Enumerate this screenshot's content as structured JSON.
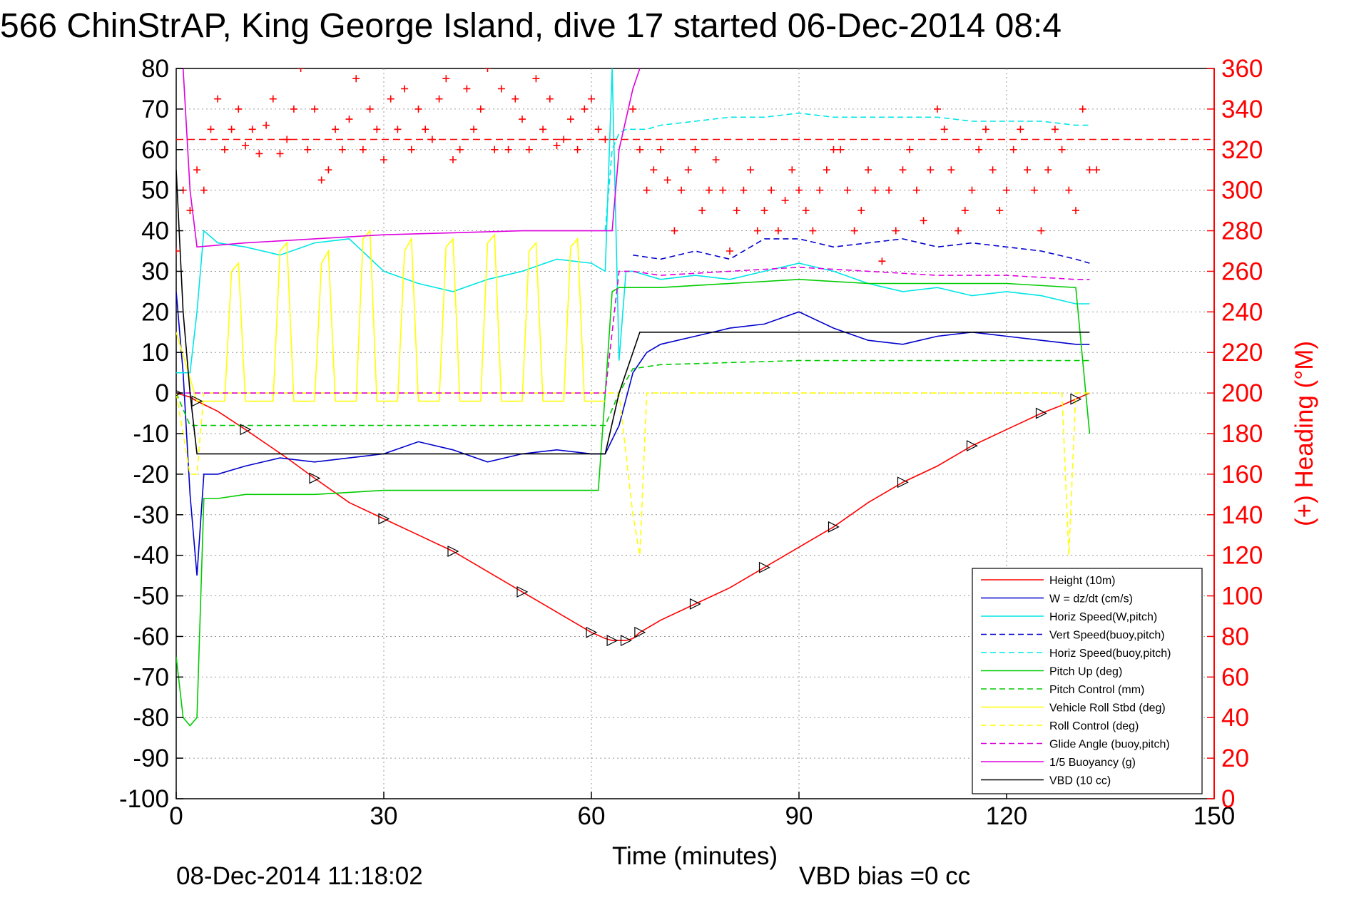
{
  "chart_data": {
    "type": "line",
    "title": "566 ChinStrAP, King George Island, dive 17 started 06-Dec-2014 08:4",
    "xlabel": "Time (minutes)",
    "ylabel_right": "(+) Heading (°M)",
    "footer_left": "08-Dec-2014 11:18:02",
    "footer_right": "VBD bias =0 cc",
    "xlim": [
      0,
      150
    ],
    "ylim_left": [
      -100,
      80
    ],
    "ylim_right": [
      0,
      360
    ],
    "x_ticks": [
      "0",
      "30",
      "60",
      "90",
      "120",
      "150"
    ],
    "y_ticks_left": [
      "80",
      "70",
      "60",
      "50",
      "40",
      "30",
      "20",
      "10",
      "0",
      "-10",
      "-20",
      "-30",
      "-40",
      "-50",
      "-60",
      "-70",
      "-80",
      "-90",
      "-100"
    ],
    "y_ticks_right": [
      "360",
      "340",
      "320",
      "300",
      "280",
      "260",
      "240",
      "220",
      "200",
      "180",
      "160",
      "140",
      "120",
      "100",
      "80",
      "60",
      "40",
      "20",
      "0"
    ],
    "grid": true,
    "legend_position": "bottom-right",
    "colors": {
      "red": "#ff0000",
      "blue": "#0000cc",
      "cyan": "#00e5e5",
      "green": "#00cc00",
      "yellow": "#ffff00",
      "magenta": "#dd00dd",
      "black": "#000000"
    },
    "series": [
      {
        "name": "Height (10m)",
        "color": "#ff0000",
        "style": "solid",
        "x": [
          0,
          2,
          3,
          6,
          10,
          16,
          20,
          25,
          30,
          35,
          40,
          45,
          50,
          55,
          60,
          62,
          63,
          64,
          65,
          66,
          67,
          70,
          75,
          80,
          85,
          90,
          95,
          100,
          105,
          110,
          115,
          120,
          125,
          128,
          130,
          132
        ],
        "y": [
          0,
          -1,
          -2,
          -4.5,
          -9,
          -16,
          -21,
          -27,
          -31,
          -35,
          -39,
          -44,
          -49,
          -54,
          -59,
          -60.5,
          -61,
          -61,
          -61,
          -60.5,
          -59,
          -56,
          -52,
          -48,
          -43,
          -38,
          -33,
          -27,
          -22,
          -18,
          -13,
          -9,
          -5,
          -3,
          -1.5,
          0
        ]
      },
      {
        "name": "W = dz/dt (cm/s)",
        "color": "#0000cc",
        "style": "solid",
        "x": [
          0,
          1,
          2,
          3,
          4,
          6,
          10,
          15,
          20,
          25,
          30,
          35,
          40,
          45,
          50,
          55,
          60,
          62,
          64,
          66,
          68,
          70,
          75,
          80,
          85,
          90,
          95,
          100,
          105,
          110,
          115,
          120,
          125,
          130,
          132
        ],
        "y": [
          25,
          5,
          -25,
          -45,
          -20,
          -20,
          -18,
          -16,
          -17,
          -16,
          -15,
          -12,
          -14,
          -17,
          -15,
          -14,
          -15,
          -15,
          -8,
          5,
          10,
          12,
          14,
          16,
          17,
          20,
          16,
          13,
          12,
          14,
          15,
          14,
          13,
          12,
          12
        ]
      },
      {
        "name": "Horiz Speed(W,pitch)",
        "color": "#00e5e5",
        "style": "solid",
        "x": [
          0,
          2,
          3,
          4,
          6,
          10,
          15,
          20,
          25,
          30,
          35,
          40,
          45,
          50,
          55,
          60,
          62,
          63,
          64,
          65,
          66,
          68,
          70,
          75,
          80,
          85,
          90,
          95,
          100,
          105,
          110,
          115,
          120,
          125,
          130,
          132
        ],
        "y": [
          5,
          5,
          20,
          40,
          37,
          36,
          34,
          37,
          38,
          30,
          27,
          25,
          28,
          30,
          33,
          32,
          30,
          80,
          8,
          30,
          30,
          29,
          28,
          29,
          28,
          30,
          32,
          30,
          27,
          25,
          26,
          24,
          25,
          24,
          22,
          22
        ]
      },
      {
        "name": "Vert Speed(buoy,pitch)",
        "color": "#0000cc",
        "style": "dashed",
        "x": [
          66,
          70,
          75,
          80,
          85,
          90,
          95,
          100,
          105,
          110,
          115,
          120,
          125,
          130,
          132
        ],
        "y": [
          34,
          33,
          35,
          33,
          38,
          38,
          36,
          37,
          38,
          36,
          37,
          36,
          35,
          33,
          32
        ]
      },
      {
        "name": "Horiz Speed(buoy,pitch)",
        "color": "#00e5e5",
        "style": "dashed",
        "x": [
          62,
          63,
          64,
          65,
          66,
          68,
          70,
          75,
          80,
          85,
          90,
          95,
          100,
          105,
          110,
          115,
          120,
          125,
          130,
          132
        ],
        "y": [
          40,
          60,
          64,
          65,
          65,
          65,
          66,
          67,
          68,
          68,
          69,
          68,
          68,
          68,
          68,
          67,
          67,
          67,
          66,
          66
        ]
      },
      {
        "name": "Pitch Up (deg)",
        "color": "#00cc00",
        "style": "solid",
        "x": [
          0,
          1,
          2,
          3,
          4,
          6,
          10,
          20,
          30,
          40,
          50,
          60,
          61,
          62,
          63,
          64,
          66,
          70,
          80,
          90,
          100,
          110,
          120,
          130,
          132
        ],
        "y": [
          -65,
          -80,
          -82,
          -80,
          -26,
          -26,
          -25,
          -25,
          -24,
          -24,
          -24,
          -24,
          -24,
          0,
          25,
          26,
          26,
          26,
          27,
          28,
          27,
          27,
          27,
          26,
          -10
        ]
      },
      {
        "name": "Pitch Control (mm)",
        "color": "#00cc00",
        "style": "dashed",
        "x": [
          0,
          2,
          4,
          10,
          30,
          50,
          62,
          64,
          66,
          70,
          80,
          90,
          100,
          110,
          120,
          130,
          132
        ],
        "y": [
          0,
          -8,
          -8,
          -8,
          -8,
          -8,
          -8,
          0,
          6,
          7,
          7.5,
          8,
          8,
          8,
          8,
          8,
          8
        ]
      },
      {
        "name": "Vehicle Roll Stbd (deg)",
        "color": "#ffff00",
        "style": "solid",
        "x": [
          0,
          3,
          4,
          5,
          6,
          7,
          8,
          9,
          10,
          11,
          12,
          13,
          14,
          15,
          16,
          17,
          18,
          19,
          20,
          21,
          22,
          23,
          24,
          25,
          26,
          27,
          28,
          29,
          30,
          31,
          32,
          33,
          34,
          35,
          36,
          37,
          38,
          39,
          40,
          41,
          42,
          43,
          44,
          45,
          46,
          47,
          48,
          49,
          50,
          51,
          52,
          53,
          54,
          55,
          56,
          57,
          58,
          59,
          60,
          61,
          62
        ],
        "y": [
          15,
          -2,
          -2,
          -2,
          -2,
          -2,
          30,
          32,
          -2,
          -2,
          -2,
          -2,
          -2,
          35,
          37,
          -2,
          -2,
          -2,
          -2,
          32,
          35,
          -2,
          -2,
          -2,
          -2,
          38,
          40,
          -2,
          -2,
          -2,
          -2,
          35,
          38,
          -2,
          -2,
          -2,
          -2,
          36,
          38,
          -2,
          -2,
          -2,
          -2,
          37,
          39,
          -2,
          -2,
          -2,
          -2,
          35,
          37,
          -2,
          -2,
          -2,
          -2,
          36,
          38,
          -2,
          -2,
          -2,
          -2
        ]
      },
      {
        "name": "Roll Control (deg)",
        "color": "#ffff00",
        "style": "dashed",
        "x": [
          0,
          2,
          3,
          4,
          10,
          30,
          60,
          62,
          64,
          66,
          67,
          68,
          70,
          80,
          90,
          100,
          110,
          120,
          128,
          129,
          130,
          132
        ],
        "y": [
          0,
          -20,
          -20,
          0,
          0,
          0,
          0,
          0,
          0,
          -30,
          -40,
          0,
          0,
          0,
          0,
          0,
          0,
          0,
          0,
          -40,
          0,
          0
        ]
      },
      {
        "name": "Glide Angle (buoy,pitch)",
        "color": "#dd00dd",
        "style": "dashed",
        "x": [
          0,
          2,
          4,
          10,
          30,
          50,
          60,
          62,
          64,
          66,
          70,
          80,
          90,
          100,
          110,
          120,
          130,
          132
        ],
        "y": [
          0,
          0,
          0,
          0,
          0,
          0,
          0,
          0,
          30,
          30,
          29,
          30,
          31,
          30,
          29,
          29,
          28,
          28
        ]
      },
      {
        "name": "1/5 Buoyancy (g)",
        "color": "#dd00dd",
        "style": "solid",
        "x": [
          1,
          2,
          3,
          10,
          20,
          30,
          40,
          50,
          60,
          62,
          63,
          64,
          66,
          67
        ],
        "y": [
          80,
          50,
          36,
          37,
          38,
          39,
          39.5,
          40,
          40,
          40,
          40,
          60,
          75,
          80
        ]
      },
      {
        "name": "VBD (10 cc)",
        "color": "#000000",
        "style": "solid",
        "x": [
          0,
          1,
          2,
          3,
          20,
          40,
          60,
          62,
          64,
          66,
          67,
          70,
          90,
          110,
          130,
          132
        ],
        "y": [
          55,
          20,
          0,
          -15,
          -15,
          -15,
          -15,
          -15,
          0,
          10,
          15,
          15,
          15,
          15,
          15,
          15
        ]
      }
    ],
    "heading_series": {
      "name": "(+) Heading (°M)",
      "axis": "right",
      "marker": "+",
      "color": "#ff0000",
      "reference_heading": 325,
      "x": [
        0,
        1,
        2,
        3,
        4,
        5,
        6,
        7,
        8,
        9,
        10,
        11,
        12,
        13,
        14,
        15,
        16,
        17,
        18,
        19,
        20,
        21,
        22,
        23,
        24,
        25,
        26,
        27,
        28,
        29,
        30,
        31,
        32,
        33,
        34,
        35,
        36,
        37,
        38,
        39,
        40,
        41,
        42,
        43,
        44,
        45,
        46,
        47,
        48,
        49,
        50,
        51,
        52,
        53,
        54,
        55,
        56,
        57,
        58,
        59,
        60,
        61,
        62,
        66,
        67,
        68,
        69,
        70,
        71,
        72,
        73,
        74,
        75,
        76,
        77,
        78,
        79,
        80,
        81,
        82,
        83,
        84,
        85,
        86,
        87,
        88,
        89,
        90,
        91,
        92,
        93,
        94,
        95,
        96,
        97,
        98,
        99,
        100,
        101,
        102,
        103,
        104,
        105,
        106,
        107,
        108,
        109,
        110,
        111,
        112,
        113,
        114,
        115,
        116,
        117,
        118,
        119,
        120,
        121,
        122,
        123,
        124,
        125,
        126,
        127,
        128,
        129,
        130,
        131,
        132,
        133
      ],
      "y": [
        270,
        300,
        290,
        310,
        300,
        330,
        345,
        320,
        330,
        340,
        322,
        330,
        318,
        332,
        345,
        318,
        325,
        340,
        360,
        320,
        340,
        305,
        310,
        330,
        320,
        335,
        355,
        320,
        340,
        330,
        315,
        345,
        330,
        350,
        320,
        340,
        330,
        325,
        345,
        355,
        315,
        320,
        350,
        330,
        340,
        360,
        320,
        350,
        320,
        345,
        335,
        320,
        355,
        330,
        345,
        322,
        325,
        335,
        320,
        340,
        345,
        330,
        325,
        340,
        320,
        300,
        310,
        320,
        305,
        280,
        300,
        310,
        320,
        290,
        300,
        315,
        300,
        270,
        290,
        300,
        310,
        280,
        290,
        300,
        280,
        295,
        310,
        300,
        290,
        280,
        300,
        310,
        320,
        320,
        300,
        280,
        290,
        310,
        300,
        265,
        300,
        280,
        310,
        320,
        300,
        285,
        310,
        340,
        330,
        310,
        280,
        290,
        300,
        320,
        330,
        310,
        290,
        300,
        320,
        330,
        310,
        300,
        280,
        310,
        330,
        320,
        300,
        290,
        340,
        310,
        310
      ]
    }
  }
}
